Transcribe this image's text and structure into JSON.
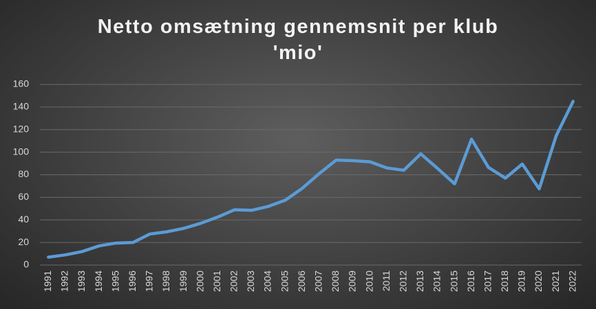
{
  "chart_data": {
    "type": "line",
    "title": "Netto omsætning gennemsnit per klub 'mio'",
    "categories": [
      "1991",
      "1992",
      "1993",
      "1994",
      "1995",
      "1996",
      "1997",
      "1998",
      "1999",
      "2000",
      "2001",
      "2002",
      "2003",
      "2004",
      "2005",
      "2006",
      "2007",
      "2008",
      "2009",
      "2010",
      "2011",
      "2012",
      "2013",
      "2014",
      "2015",
      "2016",
      "2017",
      "2018",
      "2019",
      "2020",
      "2021",
      "2022"
    ],
    "values": [
      7,
      9,
      12,
      17,
      19.5,
      20,
      27.5,
      29.5,
      32.5,
      37,
      42.5,
      49,
      48.5,
      52,
      57.5,
      68,
      81,
      93,
      92.5,
      91.5,
      86,
      84,
      98.5,
      85.5,
      72,
      111.5,
      86.5,
      77,
      89.5,
      67.5,
      114.5,
      145
    ],
    "color": "#5b9bd5",
    "ylim": [
      0,
      160
    ],
    "yticks": [
      0,
      20,
      40,
      60,
      80,
      100,
      120,
      140,
      160
    ],
    "grid": true
  }
}
